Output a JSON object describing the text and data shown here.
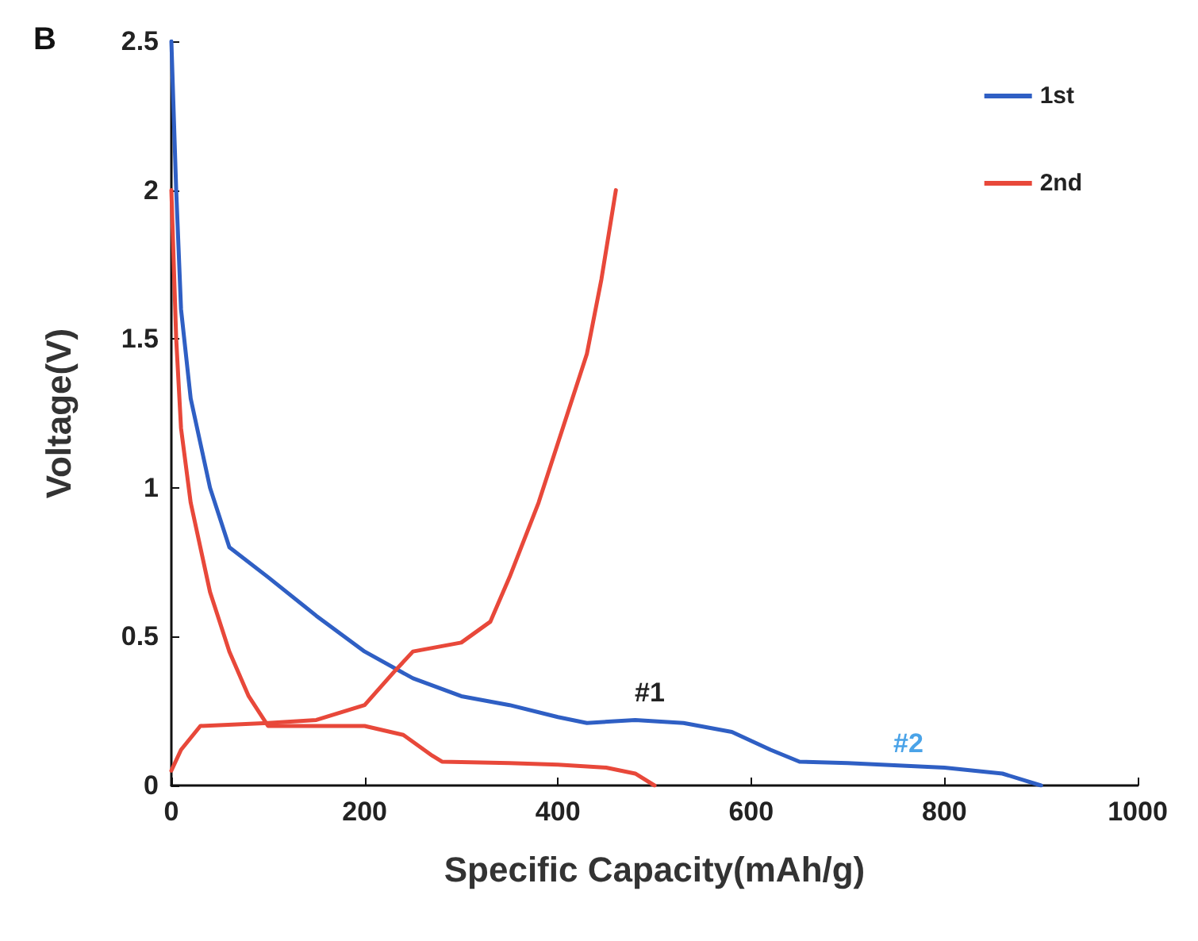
{
  "chart_data": {
    "type": "line",
    "title": "B",
    "xlabel": "Specific Capacity(mAh/g)",
    "ylabel": "Voltage(V)",
    "xlim": [
      0,
      1000
    ],
    "xticks": [
      0,
      200,
      400,
      600,
      800,
      1000
    ],
    "ylim": [
      0,
      2.5
    ],
    "yticks": [
      0,
      0.5,
      1,
      1.5,
      2,
      2.5
    ],
    "grid": false,
    "legend": "top right",
    "marker": "none",
    "line_style": "solid",
    "series": [
      {
        "name": "1st",
        "color": "#2f5fc4",
        "x": [
          0,
          5,
          10,
          20,
          40,
          60,
          100,
          150,
          200,
          250,
          300,
          350,
          400,
          430,
          480,
          530,
          580,
          620,
          650,
          700,
          800,
          860,
          900
        ],
        "values": [
          2.5,
          2.0,
          1.6,
          1.3,
          1.0,
          0.8,
          0.7,
          0.57,
          0.45,
          0.36,
          0.3,
          0.27,
          0.23,
          0.21,
          0.22,
          0.21,
          0.18,
          0.12,
          0.08,
          0.075,
          0.06,
          0.04,
          0.0
        ]
      },
      {
        "name": "2nd",
        "color": "#e8483a",
        "x": [
          0,
          5,
          10,
          20,
          40,
          60,
          80,
          100,
          150,
          200,
          240,
          270,
          280,
          350,
          400,
          450,
          480,
          500
        ],
        "values": [
          2.0,
          1.5,
          1.2,
          0.95,
          0.65,
          0.45,
          0.3,
          0.2,
          0.2,
          0.2,
          0.17,
          0.1,
          0.08,
          0.075,
          0.07,
          0.06,
          0.04,
          0.0
        ]
      },
      {
        "color": "#e8483a",
        "x": [
          0,
          10,
          30,
          100,
          150,
          200,
          230,
          250,
          300,
          330,
          350,
          380,
          410,
          430,
          445,
          460
        ],
        "values": [
          0.05,
          0.12,
          0.2,
          0.21,
          0.22,
          0.27,
          0.38,
          0.45,
          0.48,
          0.55,
          0.7,
          0.95,
          1.25,
          1.45,
          1.7,
          2.0
        ]
      }
    ],
    "annotations": [
      "#1",
      "#2"
    ]
  }
}
